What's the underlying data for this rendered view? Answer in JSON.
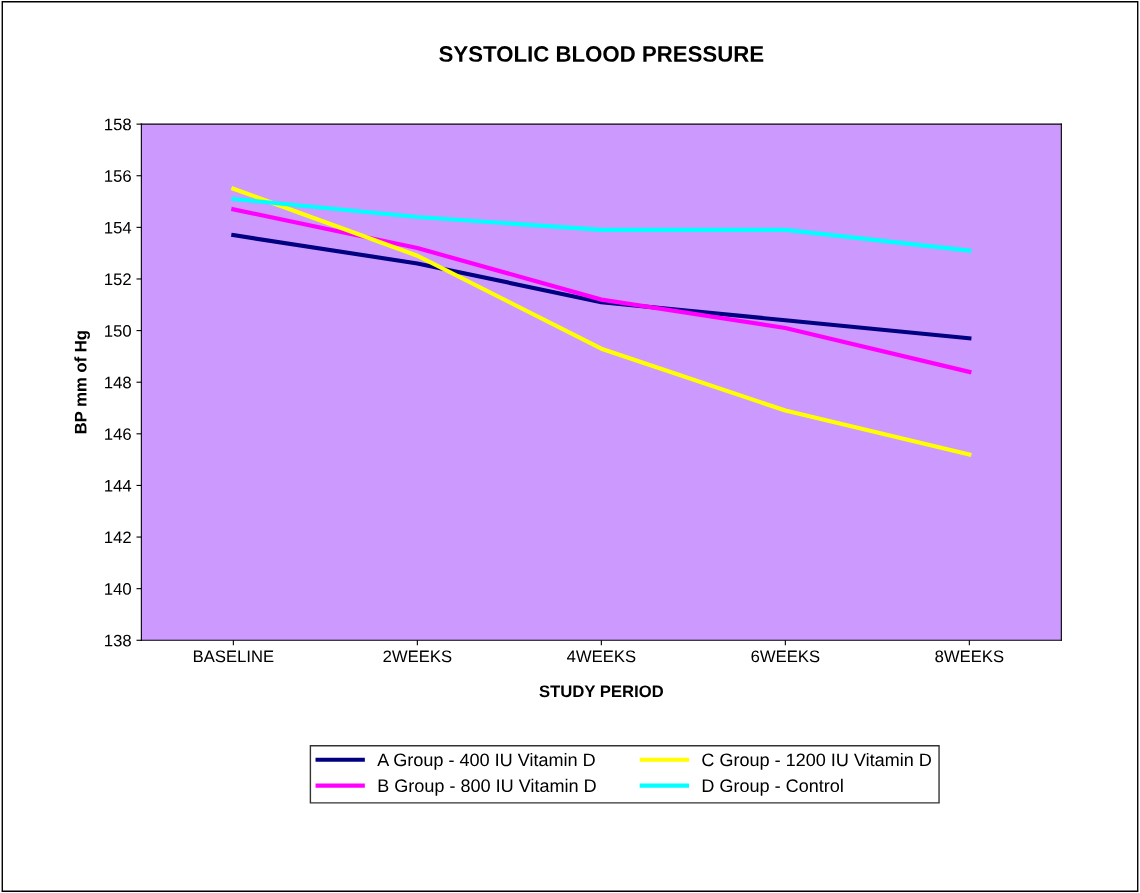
{
  "chart_data": {
    "type": "line",
    "title": "SYSTOLIC BLOOD PRESSURE",
    "xlabel": "STUDY PERIOD",
    "ylabel": "BP mm of Hg",
    "categories": [
      "BASELINE",
      "2WEEKS",
      "4WEEKS",
      "6WEEKS",
      "8WEEKS"
    ],
    "series": [
      {
        "name": "A Group - 400 IU Vitamin D",
        "color": "#000080",
        "values": [
          153.7,
          152.6,
          151.1,
          150.4,
          149.7
        ]
      },
      {
        "name": "B Group - 800 IU Vitamin D",
        "color": "#ff00ff",
        "values": [
          154.7,
          153.2,
          151.2,
          150.1,
          148.4
        ]
      },
      {
        "name": "C Group - 1200 IU Vitamin D",
        "color": "#ffff00",
        "values": [
          155.5,
          152.9,
          149.3,
          146.9,
          145.2
        ]
      },
      {
        "name": "D Group - Control",
        "color": "#00ffff",
        "values": [
          155.1,
          154.4,
          153.9,
          153.9,
          153.1
        ]
      }
    ],
    "ylim": [
      138,
      158
    ],
    "yticks": [
      138,
      140,
      142,
      144,
      146,
      148,
      150,
      152,
      154,
      156,
      158
    ],
    "grid": false,
    "legend": "bottom",
    "marker": "none",
    "line_style": "solid"
  }
}
